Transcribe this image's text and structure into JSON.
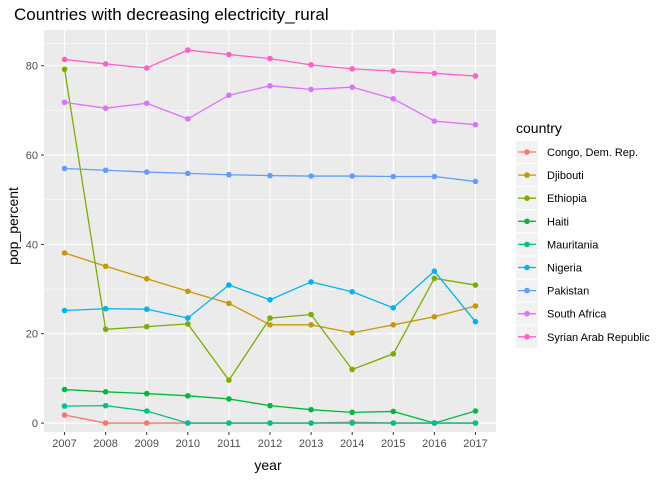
{
  "chart_data": {
    "type": "line",
    "title": "Countries with decreasing electricity_rural",
    "xlabel": "year",
    "ylabel": "pop_percent",
    "x": [
      2007,
      2008,
      2009,
      2010,
      2011,
      2012,
      2013,
      2014,
      2015,
      2016,
      2017
    ],
    "xlim": [
      2007,
      2017
    ],
    "ylim": [
      -2,
      88
    ],
    "y_ticks": [
      0,
      20,
      40,
      60,
      80
    ],
    "grid": true,
    "legend_title": "country",
    "legend_position": "right",
    "series": [
      {
        "name": "Congo, Dem. Rep.",
        "color": "#F8766D",
        "x": [
          2007,
          2008,
          2009,
          2010,
          2011,
          2012,
          2013,
          2014,
          2015,
          2016,
          2017
        ],
        "values": [
          1.8,
          0,
          0,
          0,
          0,
          0,
          0,
          0.2,
          0,
          0,
          0
        ]
      },
      {
        "name": "Djibouti",
        "color": "#C49A00",
        "x": [
          2007,
          2008,
          2009,
          2010,
          2011,
          2012,
          2013,
          2014,
          2015,
          2016,
          2017
        ],
        "values": [
          38.1,
          35.1,
          32.3,
          29.5,
          26.8,
          22.0,
          22.0,
          20.2,
          22.0,
          23.8,
          26.2
        ]
      },
      {
        "name": "Ethiopia",
        "color": "#7CAE00",
        "x": [
          2007,
          2008,
          2009,
          2010,
          2011,
          2012,
          2013,
          2014,
          2015,
          2016,
          2017
        ],
        "values": [
          79.2,
          21.0,
          21.6,
          22.2,
          9.6,
          23.5,
          24.3,
          12.0,
          15.5,
          32.4,
          30.9
        ]
      },
      {
        "name": "Haiti",
        "color": "#00BA38",
        "x": [
          2007,
          2008,
          2009,
          2010,
          2011,
          2012,
          2013,
          2014,
          2015,
          2016,
          2017
        ],
        "values": [
          7.5,
          7.0,
          6.6,
          6.1,
          5.4,
          3.9,
          3.0,
          2.4,
          2.6,
          0,
          2.7
        ]
      },
      {
        "name": "Mauritania",
        "color": "#00C08B",
        "x": [
          2007,
          2008,
          2009,
          2010,
          2011,
          2012,
          2013,
          2014,
          2015,
          2016,
          2017
        ],
        "values": [
          3.8,
          3.9,
          2.7,
          0,
          0,
          0,
          0,
          0,
          0,
          0,
          0
        ]
      },
      {
        "name": "Nigeria",
        "color": "#00B4EF",
        "x": [
          2007,
          2008,
          2009,
          2010,
          2011,
          2012,
          2013,
          2014,
          2015,
          2016,
          2017
        ],
        "values": [
          25.2,
          25.6,
          25.5,
          23.5,
          30.9,
          27.6,
          31.6,
          29.4,
          25.8,
          34.0,
          22.7
        ]
      },
      {
        "name": "Pakistan",
        "color": "#619CFF",
        "x": [
          2007,
          2008,
          2009,
          2010,
          2011,
          2012,
          2013,
          2014,
          2015,
          2016,
          2017
        ],
        "values": [
          57.0,
          56.6,
          56.2,
          55.9,
          55.6,
          55.4,
          55.3,
          55.3,
          55.2,
          55.2,
          54.1
        ]
      },
      {
        "name": "South Africa",
        "color": "#DB72FB",
        "x": [
          2007,
          2008,
          2009,
          2010,
          2011,
          2012,
          2013,
          2014,
          2015,
          2016,
          2017
        ],
        "values": [
          71.8,
          70.5,
          71.6,
          68.1,
          73.4,
          75.5,
          74.7,
          75.2,
          72.6,
          67.6,
          66.8
        ]
      },
      {
        "name": "Syrian Arab Republic",
        "color": "#FF61C3",
        "x": [
          2007,
          2008,
          2009,
          2010,
          2011,
          2012,
          2013,
          2014,
          2015,
          2016,
          2017
        ],
        "values": [
          81.4,
          80.4,
          79.5,
          83.5,
          82.5,
          81.6,
          80.2,
          79.3,
          78.8,
          78.3,
          77.7
        ]
      }
    ]
  }
}
